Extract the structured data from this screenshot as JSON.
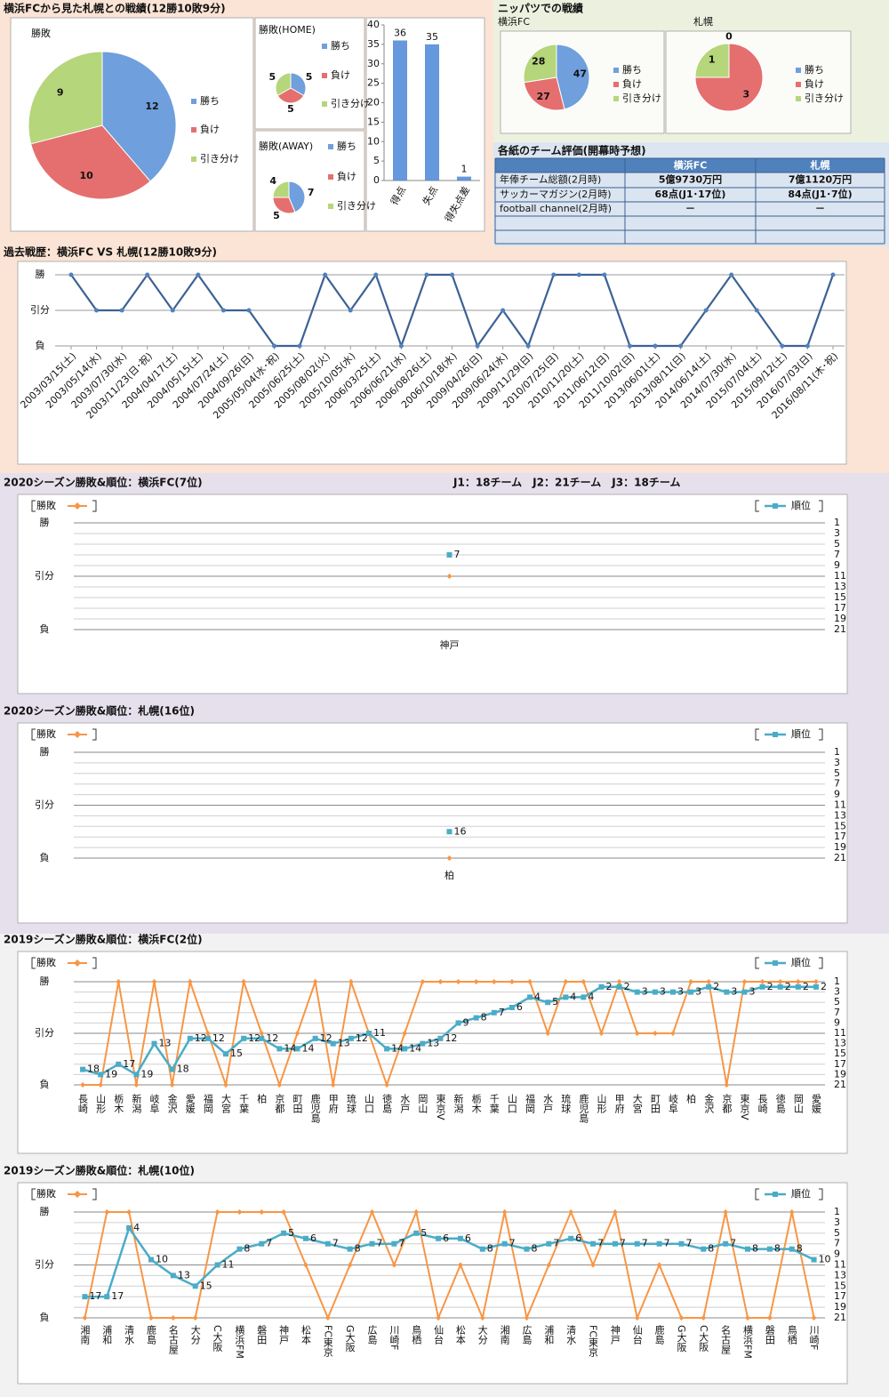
{
  "headings": [
    "横浜FCから見た札幌との戦績(12勝10敗9分)",
    "ニッパツでの戦績"
  ],
  "table": {
    "title": "各紙のチーム評価(開幕時予想)",
    "header": [
      "横浜FC",
      "札幌"
    ],
    "rows": [
      [
        "年俸チーム総額(2月時)",
        "5億9730万円",
        "7億1120万円"
      ],
      [
        "サッカーマガジン(2月時)",
        "68点(J1･17位)",
        "84点(J1･7位)"
      ],
      [
        "football channel(2月時)",
        "－",
        "－"
      ]
    ]
  },
  "chart_data": [
    {
      "type": "pie",
      "title": "勝敗",
      "categories": [
        "勝ち",
        "負け",
        "引き分け"
      ],
      "values": [
        12,
        10,
        9
      ],
      "colors": [
        "#6f9fdc",
        "#e56f6f",
        "#b5d67a"
      ]
    },
    {
      "type": "pie",
      "title": "勝敗(HOME)",
      "categories": [
        "勝ち",
        "負け",
        "引き分け"
      ],
      "values": [
        5,
        5,
        5
      ],
      "colors": [
        "#6f9fdc",
        "#e56f6f",
        "#b5d67a"
      ]
    },
    {
      "type": "pie",
      "title": "勝敗(AWAY)",
      "categories": [
        "勝ち",
        "負け",
        "引き分け"
      ],
      "values": [
        7,
        5,
        4
      ],
      "colors": [
        "#6f9fdc",
        "#e56f6f",
        "#b5d67a"
      ]
    },
    {
      "type": "bar",
      "categories": [
        "得点",
        "失点",
        "得失点差"
      ],
      "values": [
        36,
        35,
        1
      ],
      "color": "#4a86d6",
      "ylim": [
        0,
        40
      ],
      "yticks": [
        0,
        5,
        10,
        15,
        20,
        25,
        30,
        35,
        40
      ]
    },
    {
      "type": "pie",
      "title": "横浜FC",
      "categories": [
        "勝ち",
        "負け",
        "引き分け"
      ],
      "values": [
        47,
        27,
        28
      ],
      "colors": [
        "#6f9fdc",
        "#e56f6f",
        "#b5d67a"
      ]
    },
    {
      "type": "pie",
      "title": "札幌",
      "categories": [
        "勝ち",
        "負け",
        "引き分け"
      ],
      "values": [
        0,
        3,
        1
      ],
      "colors": [
        "#6f9fdc",
        "#e56f6f",
        "#b5d67a"
      ]
    },
    {
      "type": "line",
      "title": "過去戦歴：横浜FC VS 札幌(12勝10敗9分)",
      "categories": [
        "2003/03/15(土)",
        "2003/05/14(水)",
        "2003/07/30(水)",
        "2003/11/23(日･祝)",
        "2004/04/17(土)",
        "2004/05/15(土)",
        "2004/07/24(土)",
        "2004/09/26(日)",
        "2005/05/04(水･祝)",
        "2005/06/25(土)",
        "2005/08/02(火)",
        "2005/10/05(水)",
        "2006/03/25(土)",
        "2006/06/21(水)",
        "2006/08/26(土)",
        "2006/10/18(水)",
        "2009/04/26(日)",
        "2009/06/24(水)",
        "2009/11/29(日)",
        "2010/07/25(日)",
        "2010/11/20(土)",
        "2011/06/12(日)",
        "2011/10/02(日)",
        "2013/06/01(土)",
        "2013/08/11(日)",
        "2014/06/14(土)",
        "2014/07/30(水)",
        "2015/07/04(土)",
        "2015/09/12(土)",
        "2016/07/03(日)",
        "2016/08/11(木･祝)"
      ],
      "values": [
        1,
        0,
        0,
        1,
        0,
        1,
        0,
        0,
        -1,
        -1,
        1,
        0,
        1,
        -1,
        1,
        1,
        -1,
        0,
        -1,
        1,
        1,
        1,
        -1,
        -1,
        -1,
        0,
        1,
        0,
        -1,
        -1,
        1
      ],
      "color": "#3d6193",
      "ylim": [
        -1,
        1
      ],
      "yticks": [
        {
          "value": 1,
          "label": "勝"
        },
        {
          "value": 0,
          "label": "引分"
        },
        {
          "value": -1,
          "label": "負"
        }
      ]
    },
    {
      "type": "combo",
      "title": "2020シーズン勝敗&順位：横浜FC(7位)",
      "note": "J1：18チーム　J2：21チーム　J3：18チーム",
      "categories": [
        "神戸"
      ],
      "series": [
        {
          "name": "勝敗",
          "color": "#f79646",
          "values": [
            0
          ]
        },
        {
          "name": "順位",
          "color": "#4bacc6",
          "axis": "y2",
          "values": [
            7
          ]
        }
      ],
      "ylim": [
        -1,
        1
      ],
      "yticks": [
        {
          "value": 1,
          "label": "勝"
        },
        {
          "value": 0,
          "label": "引分"
        },
        {
          "value": -1,
          "label": "負"
        }
      ],
      "y2lim": [
        1,
        21
      ],
      "y2_inverted": true,
      "y2ticks": [
        1,
        3,
        5,
        7,
        9,
        11,
        13,
        15,
        17,
        19,
        21
      ]
    },
    {
      "type": "combo",
      "title": "2020シーズン勝敗&順位：札幌(16位)",
      "categories": [
        "柏"
      ],
      "series": [
        {
          "name": "勝敗",
          "color": "#f79646",
          "values": [
            -1
          ]
        },
        {
          "name": "順位",
          "color": "#4bacc6",
          "axis": "y2",
          "values": [
            16
          ]
        }
      ],
      "ylim": [
        -1,
        1
      ],
      "yticks": [
        {
          "value": 1,
          "label": "勝"
        },
        {
          "value": 0,
          "label": "引分"
        },
        {
          "value": -1,
          "label": "負"
        }
      ],
      "y2lim": [
        1,
        21
      ],
      "y2_inverted": true,
      "y2ticks": [
        1,
        3,
        5,
        7,
        9,
        11,
        13,
        15,
        17,
        19,
        21
      ]
    },
    {
      "type": "combo",
      "title": "2019シーズン勝敗&順位：横浜FC(2位)",
      "categories": [
        "長崎",
        "山形",
        "栃木",
        "新潟",
        "岐阜",
        "金沢",
        "愛媛",
        "福岡",
        "大宮",
        "千葉",
        "柏",
        "京都",
        "町田",
        "鹿児島",
        "甲府",
        "琉球",
        "山口",
        "徳島",
        "水戸",
        "岡山",
        "東京V",
        "新潟",
        "栃木",
        "千葉",
        "山口",
        "福岡",
        "水戸",
        "琉球",
        "鹿児島",
        "山形",
        "甲府",
        "大宮",
        "町田",
        "岐阜",
        "柏",
        "金沢",
        "京都",
        "東京V",
        "長崎",
        "徳島",
        "岡山",
        "愛媛"
      ],
      "series": [
        {
          "name": "勝敗",
          "color": "#f79646",
          "values": [
            -1,
            -1,
            1,
            -1,
            1,
            -1,
            1,
            0,
            -1,
            1,
            0,
            -1,
            0,
            1,
            -1,
            1,
            0,
            -1,
            0,
            1,
            1,
            1,
            1,
            1,
            1,
            1,
            0,
            1,
            1,
            0,
            1,
            0,
            0,
            0,
            1,
            1,
            -1,
            1,
            1,
            1,
            1,
            1
          ]
        },
        {
          "name": "順位",
          "color": "#4bacc6",
          "axis": "y2",
          "values": [
            18,
            19,
            17,
            19,
            13,
            18,
            12,
            12,
            15,
            12,
            12,
            14,
            14,
            12,
            13,
            12,
            11,
            14,
            14,
            13,
            12,
            9,
            8,
            7,
            6,
            4,
            5,
            4,
            4,
            2,
            2,
            3,
            3,
            3,
            3,
            2,
            3,
            3,
            2,
            2,
            2,
            2
          ]
        }
      ],
      "ylim": [
        -1,
        1
      ],
      "yticks": [
        {
          "value": 1,
          "label": "勝"
        },
        {
          "value": 0,
          "label": "引分"
        },
        {
          "value": -1,
          "label": "負"
        }
      ],
      "y2lim": [
        1,
        21
      ],
      "y2_inverted": true,
      "y2ticks": [
        1,
        3,
        5,
        7,
        9,
        11,
        13,
        15,
        17,
        19,
        21
      ]
    },
    {
      "type": "combo",
      "title": "2019シーズン勝敗&順位：札幌(10位)",
      "categories": [
        "湘南",
        "浦和",
        "清水",
        "鹿島",
        "名古屋",
        "大分",
        "C大阪",
        "横浜FM",
        "磐田",
        "神戸",
        "松本",
        "FC東京",
        "G大阪",
        "広島",
        "川崎F",
        "鳥栖",
        "仙台",
        "松本",
        "大分",
        "湘南",
        "広島",
        "浦和",
        "清水",
        "FC東京",
        "神戸",
        "仙台",
        "鹿島",
        "G大阪",
        "C大阪",
        "名古屋",
        "横浜FM",
        "磐田",
        "鳥栖",
        "川崎F"
      ],
      "series": [
        {
          "name": "勝敗",
          "color": "#f79646",
          "values": [
            -1,
            1,
            1,
            -1,
            -1,
            -1,
            1,
            1,
            1,
            1,
            0,
            -1,
            0,
            1,
            0,
            1,
            -1,
            0,
            -1,
            1,
            -1,
            0,
            1,
            0,
            1,
            -1,
            0,
            -1,
            -1,
            1,
            -1,
            -1,
            1,
            -1
          ]
        },
        {
          "name": "順位",
          "color": "#4bacc6",
          "axis": "y2",
          "values": [
            17,
            17,
            4,
            10,
            13,
            15,
            11,
            8,
            7,
            5,
            6,
            7,
            8,
            7,
            7,
            5,
            6,
            6,
            8,
            7,
            8,
            7,
            6,
            7,
            7,
            7,
            7,
            7,
            8,
            7,
            8,
            8,
            8,
            10
          ]
        }
      ],
      "ylim": [
        -1,
        1
      ],
      "yticks": [
        {
          "value": 1,
          "label": "勝"
        },
        {
          "value": 0,
          "label": "引分"
        },
        {
          "value": -1,
          "label": "負"
        }
      ],
      "y2lim": [
        1,
        21
      ],
      "y2_inverted": true,
      "y2ticks": [
        1,
        3,
        5,
        7,
        9,
        11,
        13,
        15,
        17,
        19,
        21
      ]
    }
  ]
}
